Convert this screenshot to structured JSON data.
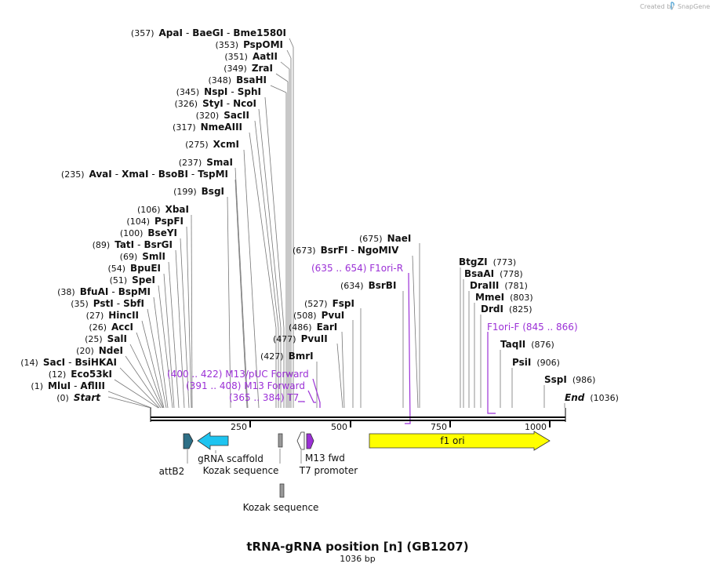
{
  "credit": "Created by",
  "brand": "SnapGene",
  "title": "tRNA-gRNA position [n] (GB1207)",
  "length_label": "1036 bp",
  "sequence_length": 1036,
  "ruler_ticks": [
    "250",
    "500",
    "750",
    "1000"
  ],
  "sites": [
    {
      "pos": "(357)",
      "names": [
        "ApaI",
        "BaeGI",
        "Bme1580I"
      ],
      "bp": 357
    },
    {
      "pos": "(353)",
      "names": [
        "PspOMI"
      ],
      "bp": 353
    },
    {
      "pos": "(351)",
      "names": [
        "AatII"
      ],
      "bp": 351
    },
    {
      "pos": "(349)",
      "names": [
        "ZraI"
      ],
      "bp": 349
    },
    {
      "pos": "(348)",
      "names": [
        "BsaHI"
      ],
      "bp": 348
    },
    {
      "pos": "(345)",
      "names": [
        "NspI",
        "SphI"
      ],
      "bp": 345
    },
    {
      "pos": "(326)",
      "names": [
        "StyI",
        "NcoI"
      ],
      "bp": 326
    },
    {
      "pos": "(320)",
      "names": [
        "SacII"
      ],
      "bp": 320
    },
    {
      "pos": "(317)",
      "names": [
        "NmeAIII"
      ],
      "bp": 317
    },
    {
      "pos": "(275)",
      "names": [
        "XcmI"
      ],
      "bp": 275
    },
    {
      "pos": "(237)",
      "names": [
        "SmaI"
      ],
      "bp": 237
    },
    {
      "pos": "(235)",
      "names": [
        "AvaI",
        "XmaI",
        "BsoBI",
        "TspMI"
      ],
      "bp": 235
    },
    {
      "pos": "(199)",
      "names": [
        "BsgI"
      ],
      "bp": 199
    },
    {
      "pos": "(106)",
      "names": [
        "XbaI"
      ],
      "bp": 106
    },
    {
      "pos": "(104)",
      "names": [
        "PspFI"
      ],
      "bp": 104
    },
    {
      "pos": "(100)",
      "names": [
        "BseYI"
      ],
      "bp": 100
    },
    {
      "pos": "(89)",
      "names": [
        "TatI",
        "BsrGI"
      ],
      "bp": 89
    },
    {
      "pos": "(69)",
      "names": [
        "SmlI"
      ],
      "bp": 69
    },
    {
      "pos": "(54)",
      "names": [
        "BpuEI"
      ],
      "bp": 54
    },
    {
      "pos": "(51)",
      "names": [
        "SpeI"
      ],
      "bp": 51
    },
    {
      "pos": "(38)",
      "names": [
        "BfuAI",
        "BspMI"
      ],
      "bp": 38
    },
    {
      "pos": "(35)",
      "names": [
        "PstI",
        "SbfI"
      ],
      "bp": 35
    },
    {
      "pos": "(27)",
      "names": [
        "HincII"
      ],
      "bp": 27
    },
    {
      "pos": "(26)",
      "names": [
        "AccI"
      ],
      "bp": 26
    },
    {
      "pos": "(25)",
      "names": [
        "SalI"
      ],
      "bp": 25
    },
    {
      "pos": "(20)",
      "names": [
        "NdeI"
      ],
      "bp": 20
    },
    {
      "pos": "(14)",
      "names": [
        "SacI",
        "BsiHKAI"
      ],
      "bp": 14
    },
    {
      "pos": "(12)",
      "names": [
        "Eco53kI"
      ],
      "bp": 12
    },
    {
      "pos": "(1)",
      "names": [
        "MluI",
        "AflIII"
      ],
      "bp": 1
    },
    {
      "pos": "(0)",
      "names": [
        "Start"
      ],
      "italic": true,
      "bp": 0
    },
    {
      "pos": "(427)",
      "names": [
        "BmrI"
      ],
      "bp": 427
    },
    {
      "pos": "(477)",
      "names": [
        "PvuII"
      ],
      "bp": 477
    },
    {
      "pos": "(486)",
      "names": [
        "EarI"
      ],
      "bp": 486
    },
    {
      "pos": "(508)",
      "names": [
        "PvuI"
      ],
      "bp": 508
    },
    {
      "pos": "(527)",
      "names": [
        "FspI"
      ],
      "bp": 527
    },
    {
      "pos": "(634)",
      "names": [
        "BsrBI"
      ],
      "bp": 634
    },
    {
      "pos": "(673)",
      "names": [
        "BsrFI",
        "NgoMIV"
      ],
      "bp": 673
    },
    {
      "pos": "(675)",
      "names": [
        "NaeI"
      ],
      "bp": 675
    },
    {
      "pos": "(773)",
      "names": [
        "BtgZI"
      ],
      "bp": 773
    },
    {
      "pos": "(778)",
      "names": [
        "BsaAI"
      ],
      "bp": 778
    },
    {
      "pos": "(781)",
      "names": [
        "DraIII"
      ],
      "bp": 781
    },
    {
      "pos": "(803)",
      "names": [
        "MmeI"
      ],
      "bp": 803
    },
    {
      "pos": "(825)",
      "names": [
        "DrdI"
      ],
      "bp": 825
    },
    {
      "pos": "(876)",
      "names": [
        "TaqII"
      ],
      "bp": 876
    },
    {
      "pos": "(906)",
      "names": [
        "PsiI"
      ],
      "bp": 906
    },
    {
      "pos": "(986)",
      "names": [
        "SspI"
      ],
      "bp": 986
    },
    {
      "pos": "(1036)",
      "names": [
        "End"
      ],
      "italic": true,
      "bp": 1036
    }
  ],
  "primers": [
    {
      "text": "(400 .. 422)  M13/pUC Forward",
      "range": [
        400,
        422
      ],
      "color": "#9b30d6"
    },
    {
      "text": "(391 .. 408)  M13 Forward",
      "range": [
        391,
        408
      ],
      "color": "#9b30d6"
    },
    {
      "text": "(365 .. 384)  T7",
      "range": [
        365,
        384
      ],
      "color": "#9b30d6"
    },
    {
      "text": "(635 .. 654)  F1ori-R",
      "range": [
        635,
        654
      ],
      "color": "#9b30d6"
    },
    {
      "text": "F1ori-F   (845 .. 866)",
      "range": [
        845,
        866
      ],
      "color": "#9b30d6"
    }
  ],
  "features": [
    {
      "label": "attB2",
      "color": "#2e6f86"
    },
    {
      "label": "gRNA scaffold",
      "color": "#1ec4f0"
    },
    {
      "label": "Kozak sequence",
      "color": "#999999"
    },
    {
      "label": "Kozak sequence",
      "color": "#999999"
    },
    {
      "label": "T7 promoter",
      "color": "#ffffff"
    },
    {
      "label": "M13 fwd",
      "color": "#9b30d6"
    },
    {
      "label": "f1 ori",
      "color": "#ffff00"
    }
  ],
  "colors": {
    "primer": "#9b30d6",
    "leader": "#777777",
    "backbone": "#000000"
  }
}
